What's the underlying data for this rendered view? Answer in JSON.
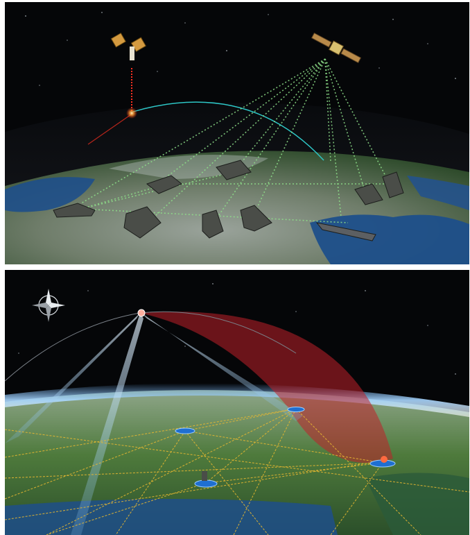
{
  "figure": {
    "panels": [
      {
        "id": "top",
        "scene": "satellite-communication-network",
        "colors": {
          "space": "#050608",
          "ocean": "#1e4f8a",
          "land": "#3f6a33",
          "cloud": "#cfd4d6",
          "link": "#8fe08a",
          "orbit": "#2ec8c8",
          "laser": "#ff3020"
        }
      },
      {
        "id": "bottom",
        "scene": "missile-defense-coverage",
        "colors": {
          "space": "#050608",
          "atmosphere": "#6fb6ff",
          "land": "#4e7a3c",
          "coverage": "#c0202a",
          "link": "#e8b830",
          "beam": "#bfe6ff",
          "node": "#1f6fd1"
        }
      }
    ]
  }
}
